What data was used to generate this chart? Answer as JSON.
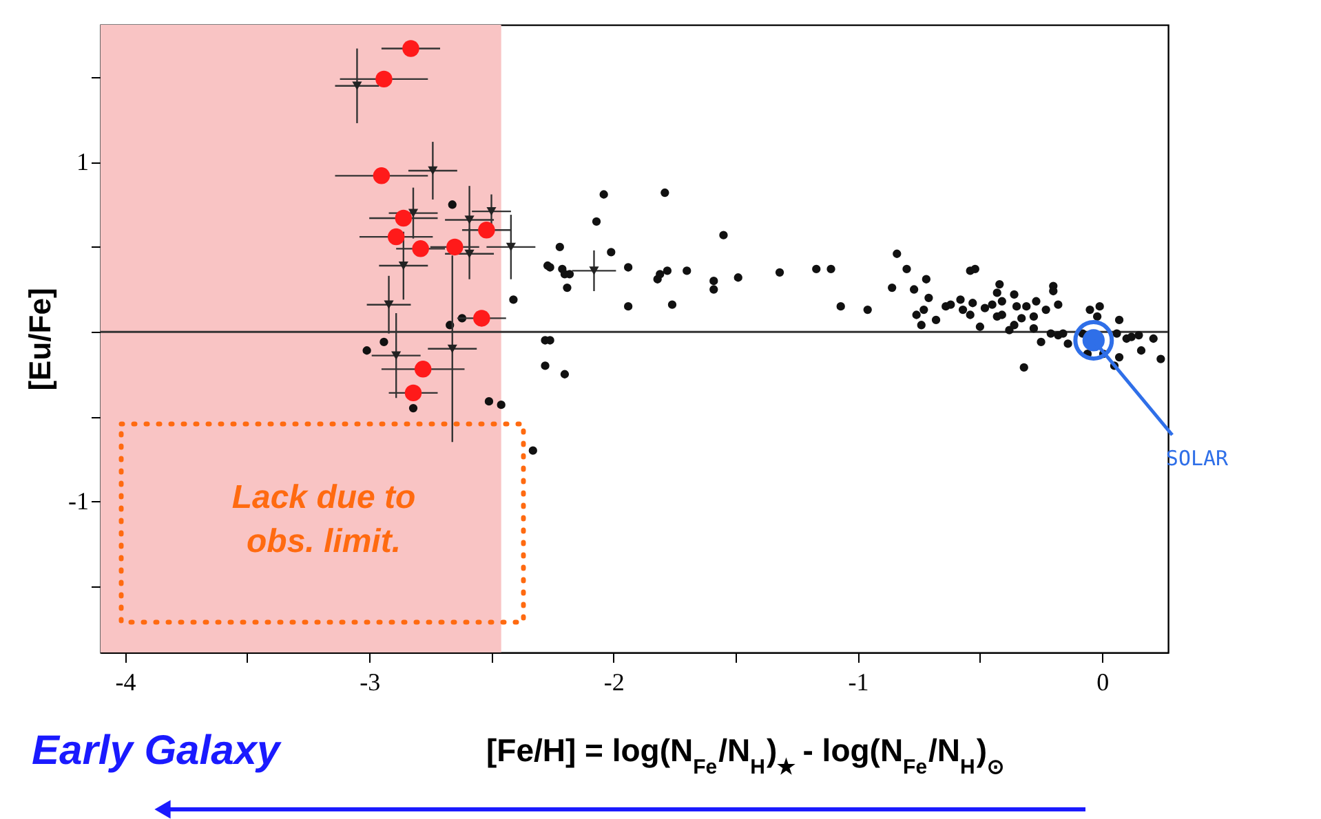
{
  "chart_data": {
    "type": "scatter",
    "xlabel": "[Fe/H] = log(N$_{Fe}$/N$_{H}$)$_{★}$ -  log(N$_{Fe}$/N$_{H}$)$_{⊙}$",
    "ylabel": "[Eu/Fe]",
    "xlim": [
      -4.1,
      0.27
    ],
    "ylim": [
      -1.89,
      1.81
    ],
    "xticks": [
      -4,
      {
        "value": -3.5,
        "label": null
      },
      -3,
      {
        "value": -2.5,
        "label": null
      },
      -2,
      {
        "value": -1.5,
        "label": null
      },
      -1,
      {
        "value": -0.5,
        "label": null
      },
      0
    ],
    "yticks": [
      {
        "value": -1.5,
        "label": null
      },
      -1,
      {
        "value": -0.5,
        "label": null
      },
      {
        "value": 0,
        "label": null
      },
      {
        "value": 0.5,
        "label": null
      },
      1,
      {
        "value": 1.5,
        "label": null
      }
    ],
    "grid": false,
    "ref_lines": [
      {
        "axis": "y",
        "value": 0,
        "color": "#333333"
      }
    ],
    "bands": [
      {
        "axis": "x",
        "from": -4.1,
        "to": -2.46,
        "color": "#f9c4c4"
      }
    ],
    "annotations": [
      "Lack due to\nobs. limit.",
      {
        "text": "SOLAR",
        "x": -0.035,
        "y": -0.05
      },
      "Early Galaxy"
    ],
    "series": [
      {
        "marker": "circle",
        "color": "#111111",
        "x": [
          -2.66,
          -2.41,
          -2.62,
          -2.67,
          -2.94,
          -3.01,
          -2.51,
          -2.46,
          -2.82,
          -2.33,
          -2.27,
          -2.28,
          -2.28,
          -2.04,
          -1.79,
          -2.07,
          -1.55,
          -2.22,
          -2.01,
          -2.26,
          -2.21,
          -2.2,
          -2.18,
          -2.19,
          -1.94,
          -1.82,
          -1.81,
          -1.78,
          -1.7,
          -1.59,
          -1.59,
          -1.49,
          -1.32,
          -1.17,
          -1.11,
          -1.07,
          -1.94,
          -1.76,
          -2.26,
          -2.2,
          -0.96,
          -0.84,
          -0.8,
          -0.86,
          -0.77,
          -0.72,
          -0.71,
          -0.73,
          -0.76,
          -0.74,
          -0.68,
          -0.64,
          -0.62,
          -0.58,
          -0.57,
          -0.53,
          -0.54,
          -0.52,
          -0.54,
          -0.5,
          -0.48,
          -0.45,
          -0.42,
          -0.43,
          -0.41,
          -0.43,
          -0.41,
          -0.36,
          -0.35,
          -0.38,
          -0.36,
          -0.33,
          -0.31,
          -0.28,
          -0.27,
          -0.28,
          -0.23,
          -0.25,
          -0.21,
          -0.2,
          -0.2,
          -0.18,
          -0.18,
          -0.16,
          -0.14,
          -0.32,
          -0.08,
          -0.05,
          -0.01,
          -0.02,
          -0.06,
          0.005,
          0.07,
          0.06,
          0.07,
          0.05,
          0.1,
          0.12,
          0.15,
          0.16,
          0.21,
          0.24
        ],
        "values": [
          0.75,
          0.19,
          0.08,
          0.04,
          -0.06,
          -0.11,
          -0.41,
          -0.43,
          -0.45,
          -0.7,
          0.39,
          -0.05,
          -0.2,
          0.81,
          0.82,
          0.65,
          0.57,
          0.5,
          0.47,
          0.38,
          0.37,
          0.34,
          0.34,
          0.26,
          0.38,
          0.31,
          0.34,
          0.36,
          0.36,
          0.3,
          0.25,
          0.32,
          0.35,
          0.37,
          0.37,
          0.15,
          0.15,
          0.16,
          -0.05,
          -0.25,
          0.13,
          0.46,
          0.37,
          0.26,
          0.25,
          0.31,
          0.2,
          0.13,
          0.1,
          0.04,
          0.07,
          0.15,
          0.16,
          0.19,
          0.13,
          0.17,
          0.36,
          0.37,
          0.1,
          0.03,
          0.14,
          0.16,
          0.28,
          0.23,
          0.18,
          0.09,
          0.1,
          0.22,
          0.15,
          0.01,
          0.04,
          0.08,
          0.15,
          0.09,
          0.18,
          0.02,
          0.13,
          -0.06,
          -0.01,
          0.27,
          0.24,
          0.16,
          -0.02,
          -0.01,
          -0.07,
          -0.21,
          -0.01,
          0.13,
          0.15,
          0.09,
          -0.13,
          -0.13,
          0.07,
          -0.01,
          -0.15,
          -0.2,
          -0.04,
          -0.03,
          -0.02,
          -0.11,
          -0.04,
          -0.16
        ]
      },
      {
        "marker": "triangle",
        "color": "#222222",
        "x": [
          -3.05,
          -2.74,
          -2.82,
          -2.59,
          -2.5,
          -2.59,
          -2.42,
          -2.86,
          -2.92,
          -2.89,
          -2.66,
          -2.08
        ],
        "values": [
          1.45,
          0.95,
          0.7,
          0.66,
          0.71,
          0.46,
          0.5,
          0.39,
          0.16,
          -0.14,
          -0.1,
          0.36
        ],
        "errors": [
          0.22,
          0.17,
          0.15,
          0.2,
          0.1,
          0.15,
          0.19,
          0.2,
          0.17,
          0.25,
          0.55,
          0.12
        ],
        "xerrors": [
          0.09,
          0.1,
          0.1,
          0.1,
          0.08,
          0.1,
          0.1,
          0.1,
          0.09,
          0.1,
          0.1,
          0.09
        ]
      },
      {
        "marker": "circle",
        "color": "#ff1a1a",
        "x": [
          -2.83,
          -2.94,
          -2.95,
          -2.86,
          -2.89,
          -2.79,
          -2.65,
          -2.52,
          -2.54,
          -2.78,
          -2.82
        ],
        "values": [
          1.67,
          1.49,
          0.92,
          0.67,
          0.56,
          0.49,
          0.5,
          0.6,
          0.08,
          -0.22,
          -0.36
        ],
        "xerrors": [
          0.12,
          0.18,
          0.19,
          0.14,
          0.15,
          0.1,
          0.1,
          0.1,
          0.1,
          0.17,
          0.1
        ]
      },
      {
        "marker": "circle",
        "color": "#2f6fe8",
        "x": [
          -0.035
        ],
        "values": [
          -0.05
        ]
      }
    ]
  }
}
